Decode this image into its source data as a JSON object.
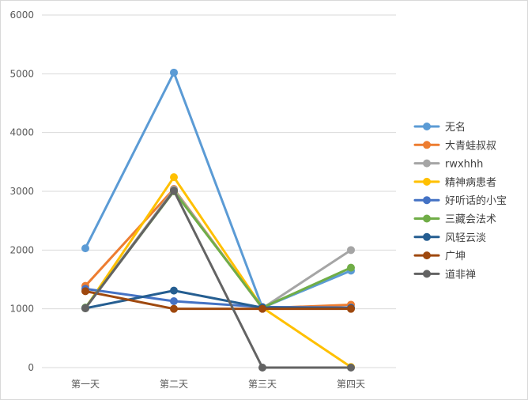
{
  "chart_data": {
    "type": "line",
    "title": "",
    "xlabel": "",
    "ylabel": "",
    "ylim": [
      0,
      6000
    ],
    "yticks": [
      0,
      1000,
      2000,
      3000,
      4000,
      5000,
      6000
    ],
    "grid": true,
    "legend": "right",
    "categories": [
      "第一天",
      "第二天",
      "第三天",
      "第四天"
    ],
    "series": [
      {
        "name": "无名",
        "color": "#5B9BD5",
        "values": [
          2030,
          5020,
          1020,
          1650
        ]
      },
      {
        "name": "大青蛙叔叔",
        "color": "#ED7D31",
        "values": [
          1390,
          3040,
          1010,
          1070
        ]
      },
      {
        "name": "rwxhhh",
        "color": "#A5A5A5",
        "values": [
          1020,
          3030,
          1010,
          2000
        ]
      },
      {
        "name": "精神病患者",
        "color": "#FFC000",
        "values": [
          1010,
          3240,
          1020,
          10
        ]
      },
      {
        "name": "好听话的小宝",
        "color": "#4472C4",
        "values": [
          1340,
          1130,
          1030,
          1020
        ]
      },
      {
        "name": "三藏会法术",
        "color": "#70AD47",
        "values": [
          1020,
          3000,
          1020,
          1700
        ]
      },
      {
        "name": "风轻云淡",
        "color": "#255E91",
        "values": [
          1010,
          1310,
          1020,
          1010
        ]
      },
      {
        "name": "广坤",
        "color": "#9E480E",
        "values": [
          1300,
          1000,
          1000,
          1000
        ]
      },
      {
        "name": "道非禅",
        "color": "#636363",
        "values": [
          1010,
          3010,
          0,
          0
        ]
      }
    ]
  }
}
